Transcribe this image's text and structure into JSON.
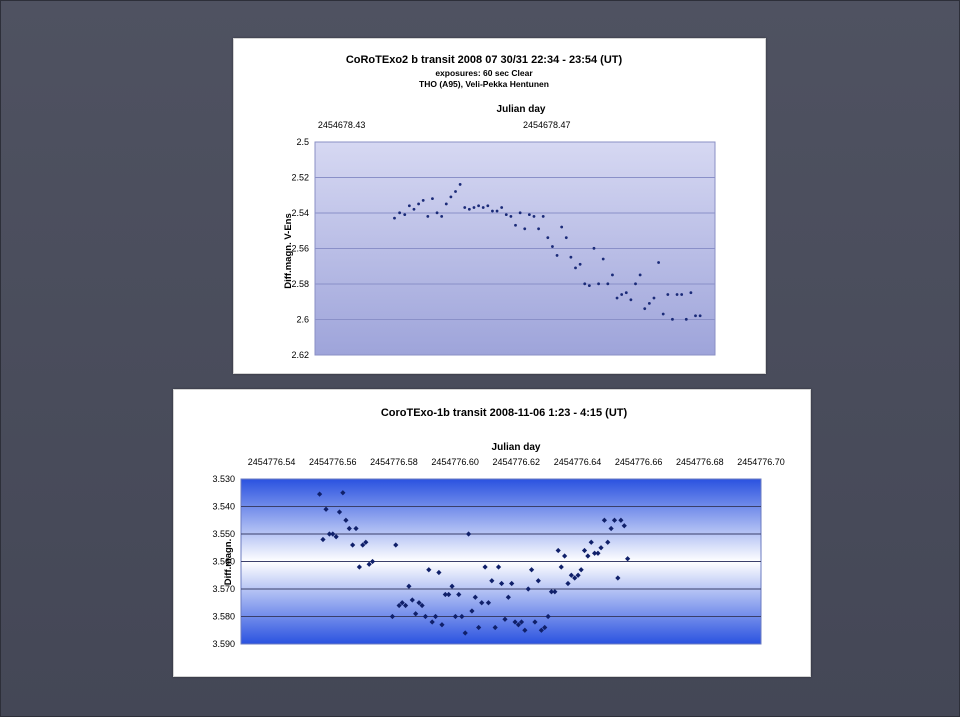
{
  "chart_data": [
    {
      "type": "scatter",
      "title": "CoRoTExo2 b transit  2008 07 30/31  22:34 - 23:54 (UT)",
      "subtitles": [
        "exposures: 60 sec Clear",
        "THO (A95), Veli-Pekka Hentunen"
      ],
      "xlabel": "Julian day",
      "ylabel": "Diff.magn. V-Ens",
      "xlim": [
        2454678.4248,
        2454678.5028
      ],
      "ylim": [
        2.62,
        2.5
      ],
      "y_inverted": true,
      "x_ticks": [
        "2454678.43",
        "2454678.47"
      ],
      "x_tick_values": [
        2454678.43,
        2454678.47
      ],
      "y_ticks": [
        "2.5",
        "2.52",
        "2.54",
        "2.56",
        "2.58",
        "2.6",
        "2.62"
      ],
      "y_tick_values": [
        2.5,
        2.52,
        2.54,
        2.56,
        2.58,
        2.6,
        2.62
      ],
      "grid": "horizontal",
      "marker_color": "#1a2a78",
      "points": [
        [
          2454678.4403,
          2.5429
        ],
        [
          2454678.4413,
          2.5399
        ],
        [
          2454678.4423,
          2.5409
        ],
        [
          2454678.4432,
          2.5359
        ],
        [
          2454678.4441,
          2.5379
        ],
        [
          2454678.445,
          2.5349
        ],
        [
          2454678.4459,
          2.5329
        ],
        [
          2454678.4468,
          2.5419
        ],
        [
          2454678.4477,
          2.5319
        ],
        [
          2454678.4486,
          2.5399
        ],
        [
          2454678.4495,
          2.5419
        ],
        [
          2454678.4504,
          2.5349
        ],
        [
          2454678.4513,
          2.5309
        ],
        [
          2454678.4522,
          2.5279
        ],
        [
          2454678.4531,
          2.5239
        ],
        [
          2454678.454,
          2.5369
        ],
        [
          2454678.4549,
          2.5379
        ],
        [
          2454678.4558,
          2.5369
        ],
        [
          2454678.4567,
          2.5359
        ],
        [
          2454678.4576,
          2.5369
        ],
        [
          2454678.4585,
          2.5359
        ],
        [
          2454678.4594,
          2.5389
        ],
        [
          2454678.4603,
          2.5389
        ],
        [
          2454678.4612,
          2.5369
        ],
        [
          2454678.4621,
          2.5409
        ],
        [
          2454678.463,
          2.5419
        ],
        [
          2454678.4639,
          2.5469
        ],
        [
          2454678.4648,
          2.5399
        ],
        [
          2454678.4657,
          2.5489
        ],
        [
          2454678.4666,
          2.5409
        ],
        [
          2454678.4675,
          2.5419
        ],
        [
          2454678.4684,
          2.5489
        ],
        [
          2454678.4693,
          2.5419
        ],
        [
          2454678.4702,
          2.5539
        ],
        [
          2454678.4711,
          2.5589
        ],
        [
          2454678.472,
          2.5639
        ],
        [
          2454678.4729,
          2.5479
        ],
        [
          2454678.4738,
          2.5539
        ],
        [
          2454678.4747,
          2.5649
        ],
        [
          2454678.4756,
          2.5709
        ],
        [
          2454678.4765,
          2.5689
        ],
        [
          2454678.4774,
          2.5799
        ],
        [
          2454678.4783,
          2.5809
        ],
        [
          2454678.4792,
          2.5599
        ],
        [
          2454678.4801,
          2.5799
        ],
        [
          2454678.481,
          2.5659
        ],
        [
          2454678.4819,
          2.5799
        ],
        [
          2454678.4828,
          2.5749
        ],
        [
          2454678.4837,
          2.5879
        ],
        [
          2454678.4846,
          2.5859
        ],
        [
          2454678.4855,
          2.5849
        ],
        [
          2454678.4864,
          2.5889
        ],
        [
          2454678.4873,
          2.5799
        ],
        [
          2454678.4882,
          2.5749
        ],
        [
          2454678.4891,
          2.5939
        ],
        [
          2454678.49,
          2.5909
        ],
        [
          2454678.4909,
          2.5879
        ],
        [
          2454678.4918,
          2.5679
        ],
        [
          2454678.4927,
          2.5969
        ],
        [
          2454678.4936,
          2.5859
        ],
        [
          2454678.4945,
          2.5999
        ],
        [
          2454678.4954,
          2.5859
        ],
        [
          2454678.4963,
          2.5859
        ],
        [
          2454678.4972,
          2.5999
        ],
        [
          2454678.4981,
          2.5849
        ],
        [
          2454678.499,
          2.5979
        ],
        [
          2454678.4999,
          2.5979
        ]
      ]
    },
    {
      "type": "scatter",
      "title": "CoroTExo-1b transit 2008-11-06 1:23 - 4:15 (UT)",
      "xlabel": "Julian day",
      "ylabel": "Diff.magn.",
      "xlim": [
        2454776.53,
        2454776.7
      ],
      "ylim": [
        3.59,
        3.53
      ],
      "y_inverted": true,
      "x_ticks": [
        "2454776.54",
        "2454776.56",
        "2454776.58",
        "2454776.60",
        "2454776.62",
        "2454776.64",
        "2454776.66",
        "2454776.68",
        "2454776.70"
      ],
      "x_tick_values": [
        2454776.54,
        2454776.56,
        2454776.58,
        2454776.6,
        2454776.62,
        2454776.64,
        2454776.66,
        2454776.68,
        2454776.7
      ],
      "y_ticks": [
        "3.530",
        "3.540",
        "3.550",
        "3.560",
        "3.570",
        "3.580",
        "3.590"
      ],
      "y_tick_values": [
        3.53,
        3.54,
        3.55,
        3.56,
        3.57,
        3.58,
        3.59
      ],
      "grid": "horizontal",
      "marker_color": "#10206a",
      "points": [
        [
          2454776.5557,
          3.5355
        ],
        [
          2454776.5568,
          3.552
        ],
        [
          2454776.5578,
          3.541
        ],
        [
          2454776.5589,
          3.55
        ],
        [
          2454776.56,
          3.55
        ],
        [
          2454776.5611,
          3.551
        ],
        [
          2454776.5622,
          3.542
        ],
        [
          2454776.5633,
          3.535
        ],
        [
          2454776.5643,
          3.545
        ],
        [
          2454776.5654,
          3.548
        ],
        [
          2454776.5665,
          3.554
        ],
        [
          2454776.5676,
          3.548
        ],
        [
          2454776.5687,
          3.562
        ],
        [
          2454776.5698,
          3.554
        ],
        [
          2454776.5708,
          3.553
        ],
        [
          2454776.5719,
          3.561
        ],
        [
          2454776.573,
          3.56
        ],
        [
          2454776.5795,
          3.58
        ],
        [
          2454776.5806,
          3.554
        ],
        [
          2454776.5817,
          3.576
        ],
        [
          2454776.5827,
          3.575
        ],
        [
          2454776.5838,
          3.576
        ],
        [
          2454776.5849,
          3.569
        ],
        [
          2454776.586,
          3.574
        ],
        [
          2454776.5871,
          3.579
        ],
        [
          2454776.5882,
          3.575
        ],
        [
          2454776.5892,
          3.576
        ],
        [
          2454776.5903,
          3.58
        ],
        [
          2454776.5914,
          3.563
        ],
        [
          2454776.5925,
          3.582
        ],
        [
          2454776.5936,
          3.58
        ],
        [
          2454776.5947,
          3.564
        ],
        [
          2454776.5957,
          3.583
        ],
        [
          2454776.5968,
          3.572
        ],
        [
          2454776.5979,
          3.572
        ],
        [
          2454776.599,
          3.569
        ],
        [
          2454776.6001,
          3.58
        ],
        [
          2454776.6012,
          3.572
        ],
        [
          2454776.6022,
          3.58
        ],
        [
          2454776.6033,
          3.586
        ],
        [
          2454776.6044,
          3.55
        ],
        [
          2454776.6055,
          3.578
        ],
        [
          2454776.6066,
          3.573
        ],
        [
          2454776.6077,
          3.584
        ],
        [
          2454776.6087,
          3.575
        ],
        [
          2454776.6098,
          3.562
        ],
        [
          2454776.6109,
          3.575
        ],
        [
          2454776.612,
          3.567
        ],
        [
          2454776.6131,
          3.584
        ],
        [
          2454776.6142,
          3.562
        ],
        [
          2454776.6152,
          3.568
        ],
        [
          2454776.6163,
          3.581
        ],
        [
          2454776.6174,
          3.573
        ],
        [
          2454776.6185,
          3.568
        ],
        [
          2454776.6196,
          3.582
        ],
        [
          2454776.6207,
          3.583
        ],
        [
          2454776.6217,
          3.582
        ],
        [
          2454776.6228,
          3.585
        ],
        [
          2454776.6239,
          3.57
        ],
        [
          2454776.625,
          3.563
        ],
        [
          2454776.6261,
          3.582
        ],
        [
          2454776.6272,
          3.567
        ],
        [
          2454776.6282,
          3.585
        ],
        [
          2454776.6293,
          3.584
        ],
        [
          2454776.6304,
          3.58
        ],
        [
          2454776.6315,
          3.571
        ],
        [
          2454776.6326,
          3.571
        ],
        [
          2454776.6337,
          3.556
        ],
        [
          2454776.6347,
          3.562
        ],
        [
          2454776.6358,
          3.558
        ],
        [
          2454776.6369,
          3.568
        ],
        [
          2454776.638,
          3.565
        ],
        [
          2454776.6391,
          3.566
        ],
        [
          2454776.6402,
          3.565
        ],
        [
          2454776.6412,
          3.563
        ],
        [
          2454776.6423,
          3.556
        ],
        [
          2454776.6434,
          3.558
        ],
        [
          2454776.6445,
          3.553
        ],
        [
          2454776.6456,
          3.557
        ],
        [
          2454776.6467,
          3.557
        ],
        [
          2454776.6477,
          3.555
        ],
        [
          2454776.6488,
          3.545
        ],
        [
          2454776.6499,
          3.553
        ],
        [
          2454776.651,
          3.548
        ],
        [
          2454776.6521,
          3.545
        ],
        [
          2454776.6532,
          3.566
        ],
        [
          2454776.6542,
          3.545
        ],
        [
          2454776.6553,
          3.547
        ],
        [
          2454776.6564,
          3.559
        ]
      ]
    }
  ]
}
